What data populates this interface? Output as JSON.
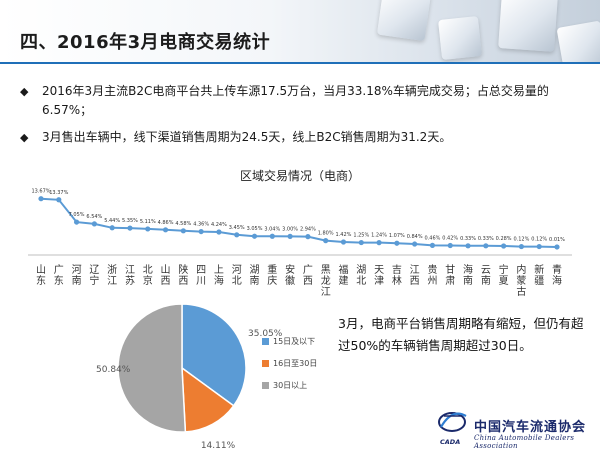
{
  "header": {
    "title": "四、2016年3月电商交易统计"
  },
  "bullets": [
    {
      "mark": "◆",
      "text": "2016年3月主流B2C电商平台共上传车源17.5万台，当月33.18%车辆完成交易；占总交易量的6.57%；"
    },
    {
      "mark": "◆",
      "text": "3月售出车辆中，线下渠道销售周期为24.5天，线上B2C销售周期为31.2天。"
    }
  ],
  "note": {
    "text": "3月，电商平台销售周期略有缩短，但仍有超过50%的车辆销售周期超过30日。"
  },
  "logo": {
    "name": "中国汽车流通协会",
    "english": "China Automobile Dealers Association",
    "abbr": "CADA",
    "color": "#1b2a6b"
  },
  "chart_data": [
    {
      "type": "line",
      "title": "区域交易情况（电商）",
      "categories": [
        "山东",
        "广东",
        "河南",
        "辽宁",
        "浙江",
        "江苏",
        "北京",
        "山西",
        "陕西",
        "四川",
        "上海",
        "河北",
        "湖南",
        "重庆",
        "安徽",
        "广西",
        "黑龙江",
        "福建",
        "湖北",
        "天津",
        "吉林",
        "江西",
        "贵州",
        "甘肃",
        "海南",
        "云南",
        "宁夏",
        "内蒙古",
        "新疆",
        "青海"
      ],
      "values": [
        13.67,
        13.37,
        7.05,
        6.54,
        5.44,
        5.35,
        5.11,
        4.86,
        4.58,
        4.36,
        4.24,
        3.45,
        3.05,
        3.04,
        3.0,
        2.94,
        1.8,
        1.42,
        1.25,
        1.24,
        1.07,
        0.84,
        0.46,
        0.42,
        0.33,
        0.33,
        0.28,
        0.12,
        0.12,
        0.01
      ],
      "value_labels": [
        "13.67%",
        "13.37%",
        "7.05%",
        "6.54%",
        "5.44%",
        "5.35%",
        "5.11%",
        "4.86%",
        "4.58%",
        "4.36%",
        "4.24%",
        "3.45%",
        "3.05%",
        "3.04%",
        "3.00%",
        "2.94%",
        "1.80%",
        "1.42%",
        "1.25%",
        "1.24%",
        "1.07%",
        "0.84%",
        "0.46%",
        "0.42%",
        "0.33%",
        "0.33%",
        "0.28%",
        "0.12%",
        "0.12%",
        "0.01%"
      ],
      "ylim": [
        0,
        15
      ],
      "grid": false,
      "color": "#5b9bd5"
    },
    {
      "type": "pie",
      "slices": [
        {
          "label": "15日及以下",
          "value": 35.05,
          "value_label": "35.05%",
          "color": "#5b9bd5"
        },
        {
          "label": "16日至30日",
          "value": 14.11,
          "value_label": "14.11%",
          "color": "#ed7d31"
        },
        {
          "label": "30日以上",
          "value": 50.84,
          "value_label": "50.84%",
          "color": "#a5a5a5"
        }
      ],
      "legend_position": "right"
    }
  ]
}
